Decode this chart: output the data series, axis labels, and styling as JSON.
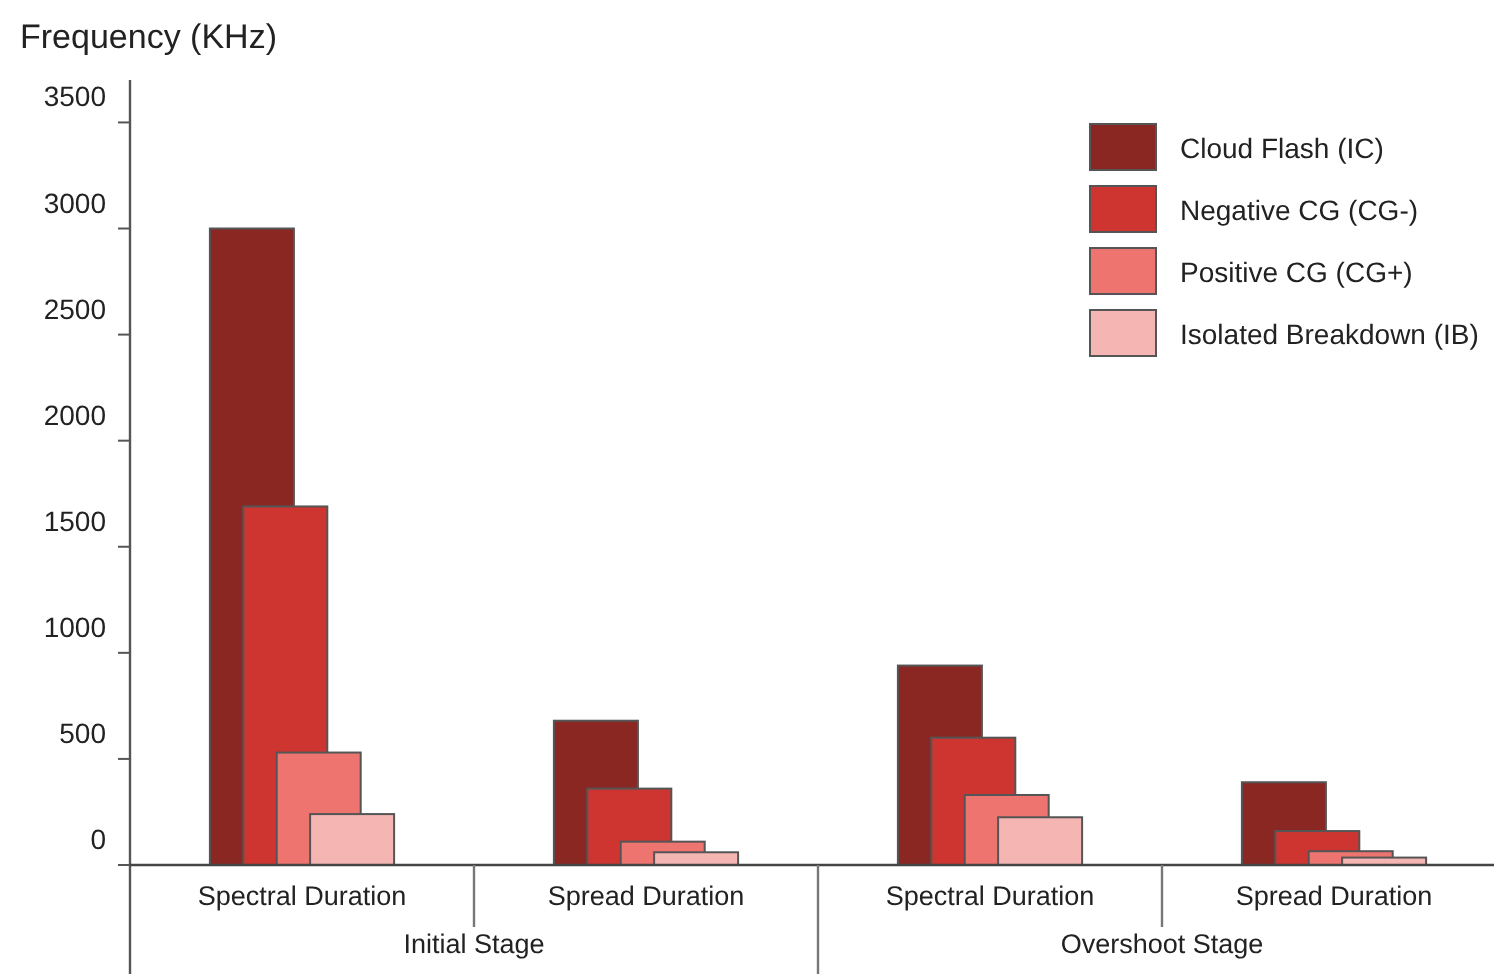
{
  "chart_data": {
    "type": "bar",
    "ylabel": "Frequency (KHz)",
    "categories": [
      "Spectral Duration",
      "Spread Duration",
      "Spectral Duration",
      "Spread Duration"
    ],
    "annotations": [
      "Initial Stage",
      "Overshoot Stage"
    ],
    "series": [
      {
        "name": "Cloud Flash (IC)",
        "color": "#8b2723",
        "values": [
          3000,
          680,
          940,
          390
        ]
      },
      {
        "name": "Negative CG (CG-)",
        "color": "#cf3530",
        "values": [
          1690,
          360,
          600,
          160
        ]
      },
      {
        "name": "Positive CG (CG+)",
        "color": "#ee7470",
        "values": [
          530,
          110,
          330,
          65
        ]
      },
      {
        "name": "Isolated Breakdown (IB)",
        "color": "#f4b5b3",
        "values": [
          240,
          60,
          225,
          35
        ]
      }
    ],
    "ylim": [
      0,
      3700
    ],
    "yticks": [
      0,
      500,
      1000,
      1500,
      2000,
      2500,
      3000,
      3500
    ],
    "grid": false,
    "legend": "top right"
  }
}
